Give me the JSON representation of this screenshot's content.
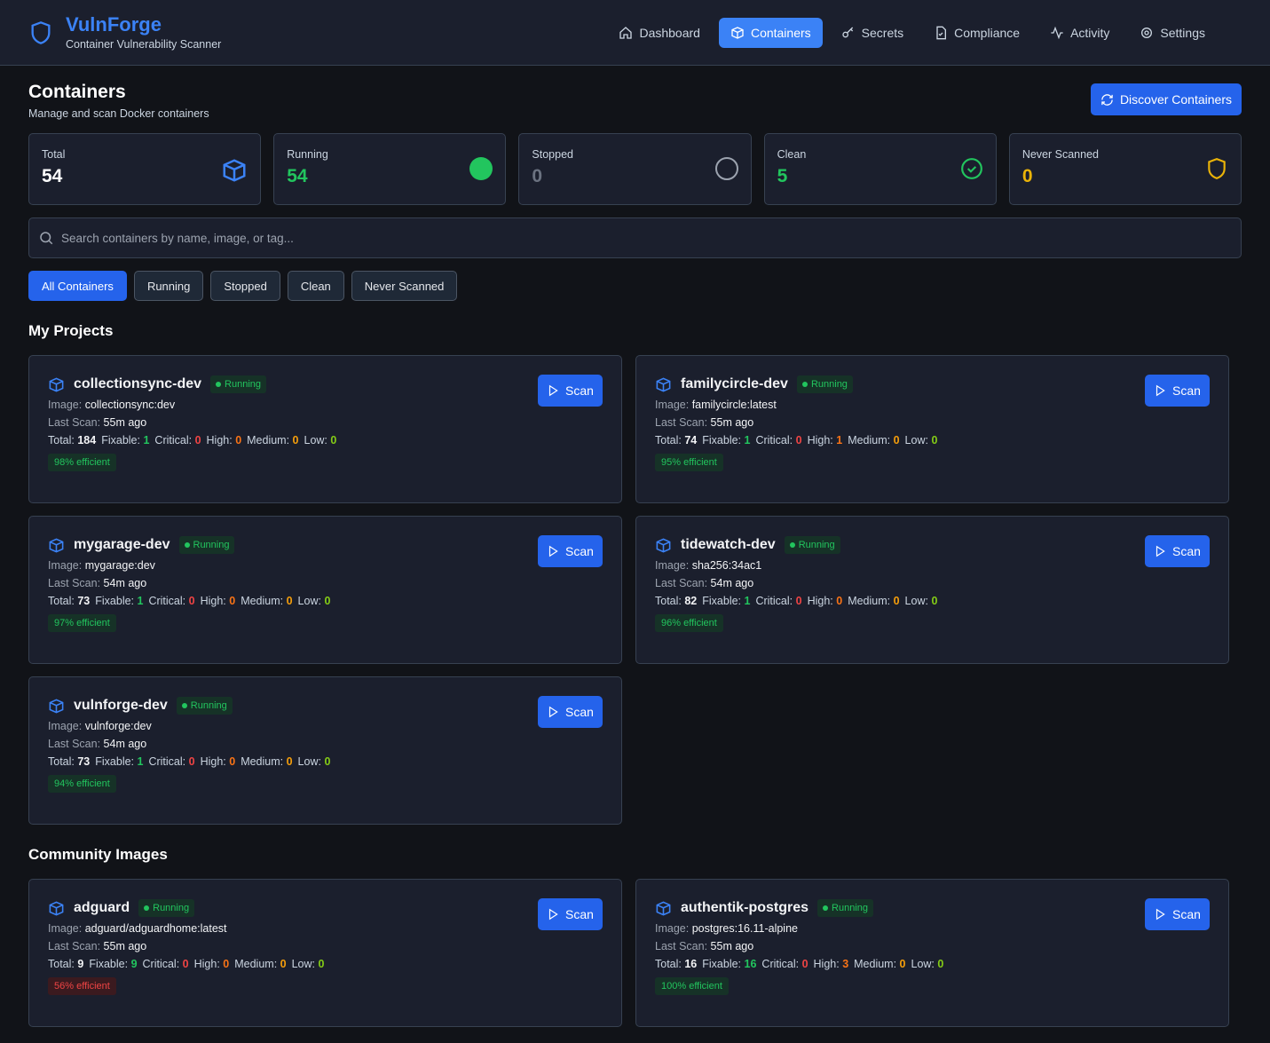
{
  "app": {
    "name": "VulnForge",
    "tagline": "Container Vulnerability Scanner"
  },
  "nav": [
    {
      "label": "Dashboard",
      "icon": "home-icon"
    },
    {
      "label": "Containers",
      "icon": "box-icon",
      "active": true
    },
    {
      "label": "Secrets",
      "icon": "key-icon"
    },
    {
      "label": "Compliance",
      "icon": "file-check-icon"
    },
    {
      "label": "Activity",
      "icon": "activity-icon"
    },
    {
      "label": "Settings",
      "icon": "gear-icon"
    }
  ],
  "page": {
    "title": "Containers",
    "subtitle": "Manage and scan Docker containers",
    "discover_label": "Discover Containers"
  },
  "stats": [
    {
      "label": "Total",
      "value": "54",
      "color": "#ffffff"
    },
    {
      "label": "Running",
      "value": "54",
      "color": "#22c55e"
    },
    {
      "label": "Stopped",
      "value": "0",
      "color": "#6b7280"
    },
    {
      "label": "Clean",
      "value": "5",
      "color": "#22c55e"
    },
    {
      "label": "Never Scanned",
      "value": "0",
      "color": "#eab308"
    }
  ],
  "search": {
    "placeholder": "Search containers by name, image, or tag...",
    "value": ""
  },
  "filters": [
    "All Containers",
    "Running",
    "Stopped",
    "Clean",
    "Never Scanned"
  ],
  "labels": {
    "image": "Image: ",
    "last_scan": "Last Scan: ",
    "total": "Total: ",
    "fixable": "Fixable: ",
    "critical": "Critical: ",
    "high": "High: ",
    "medium": "Medium: ",
    "low": "Low: ",
    "scan": "Scan",
    "efficient_suffix": " efficient"
  },
  "colors": {
    "fixable": "#22c55e",
    "critical": "#ef4444",
    "high": "#f97316",
    "medium": "#f59e0b",
    "low": "#84cc16"
  },
  "sections": [
    {
      "title": "My Projects",
      "containers": [
        {
          "name": "collectionsync-dev",
          "status": "Running",
          "image": "collectionsync:dev",
          "last_scan": "55m ago",
          "total": "184",
          "fixable": "1",
          "critical": "0",
          "high": "0",
          "medium": "0",
          "low": "0",
          "efficiency": "98%",
          "eff_ok": true
        },
        {
          "name": "familycircle-dev",
          "status": "Running",
          "image": "familycircle:latest",
          "last_scan": "55m ago",
          "total": "74",
          "fixable": "1",
          "critical": "0",
          "high": "1",
          "medium": "0",
          "low": "0",
          "efficiency": "95%",
          "eff_ok": true
        },
        {
          "name": "mygarage-dev",
          "status": "Running",
          "image": "mygarage:dev",
          "last_scan": "54m ago",
          "total": "73",
          "fixable": "1",
          "critical": "0",
          "high": "0",
          "medium": "0",
          "low": "0",
          "efficiency": "97%",
          "eff_ok": true
        },
        {
          "name": "tidewatch-dev",
          "status": "Running",
          "image": "sha256:34ac1",
          "last_scan": "54m ago",
          "total": "82",
          "fixable": "1",
          "critical": "0",
          "high": "0",
          "medium": "0",
          "low": "0",
          "efficiency": "96%",
          "eff_ok": true
        },
        {
          "name": "vulnforge-dev",
          "status": "Running",
          "image": "vulnforge:dev",
          "last_scan": "54m ago",
          "total": "73",
          "fixable": "1",
          "critical": "0",
          "high": "0",
          "medium": "0",
          "low": "0",
          "efficiency": "94%",
          "eff_ok": true
        }
      ]
    },
    {
      "title": "Community Images",
      "containers": [
        {
          "name": "adguard",
          "status": "Running",
          "image": "adguard/adguardhome:latest",
          "last_scan": "55m ago",
          "total": "9",
          "fixable": "9",
          "critical": "0",
          "high": "0",
          "medium": "0",
          "low": "0",
          "efficiency": "56%",
          "eff_ok": false
        },
        {
          "name": "authentik-postgres",
          "status": "Running",
          "image": "postgres:16.11-alpine",
          "last_scan": "55m ago",
          "total": "16",
          "fixable": "16",
          "critical": "0",
          "high": "3",
          "medium": "0",
          "low": "0",
          "efficiency": "100%",
          "eff_ok": true
        }
      ]
    }
  ]
}
